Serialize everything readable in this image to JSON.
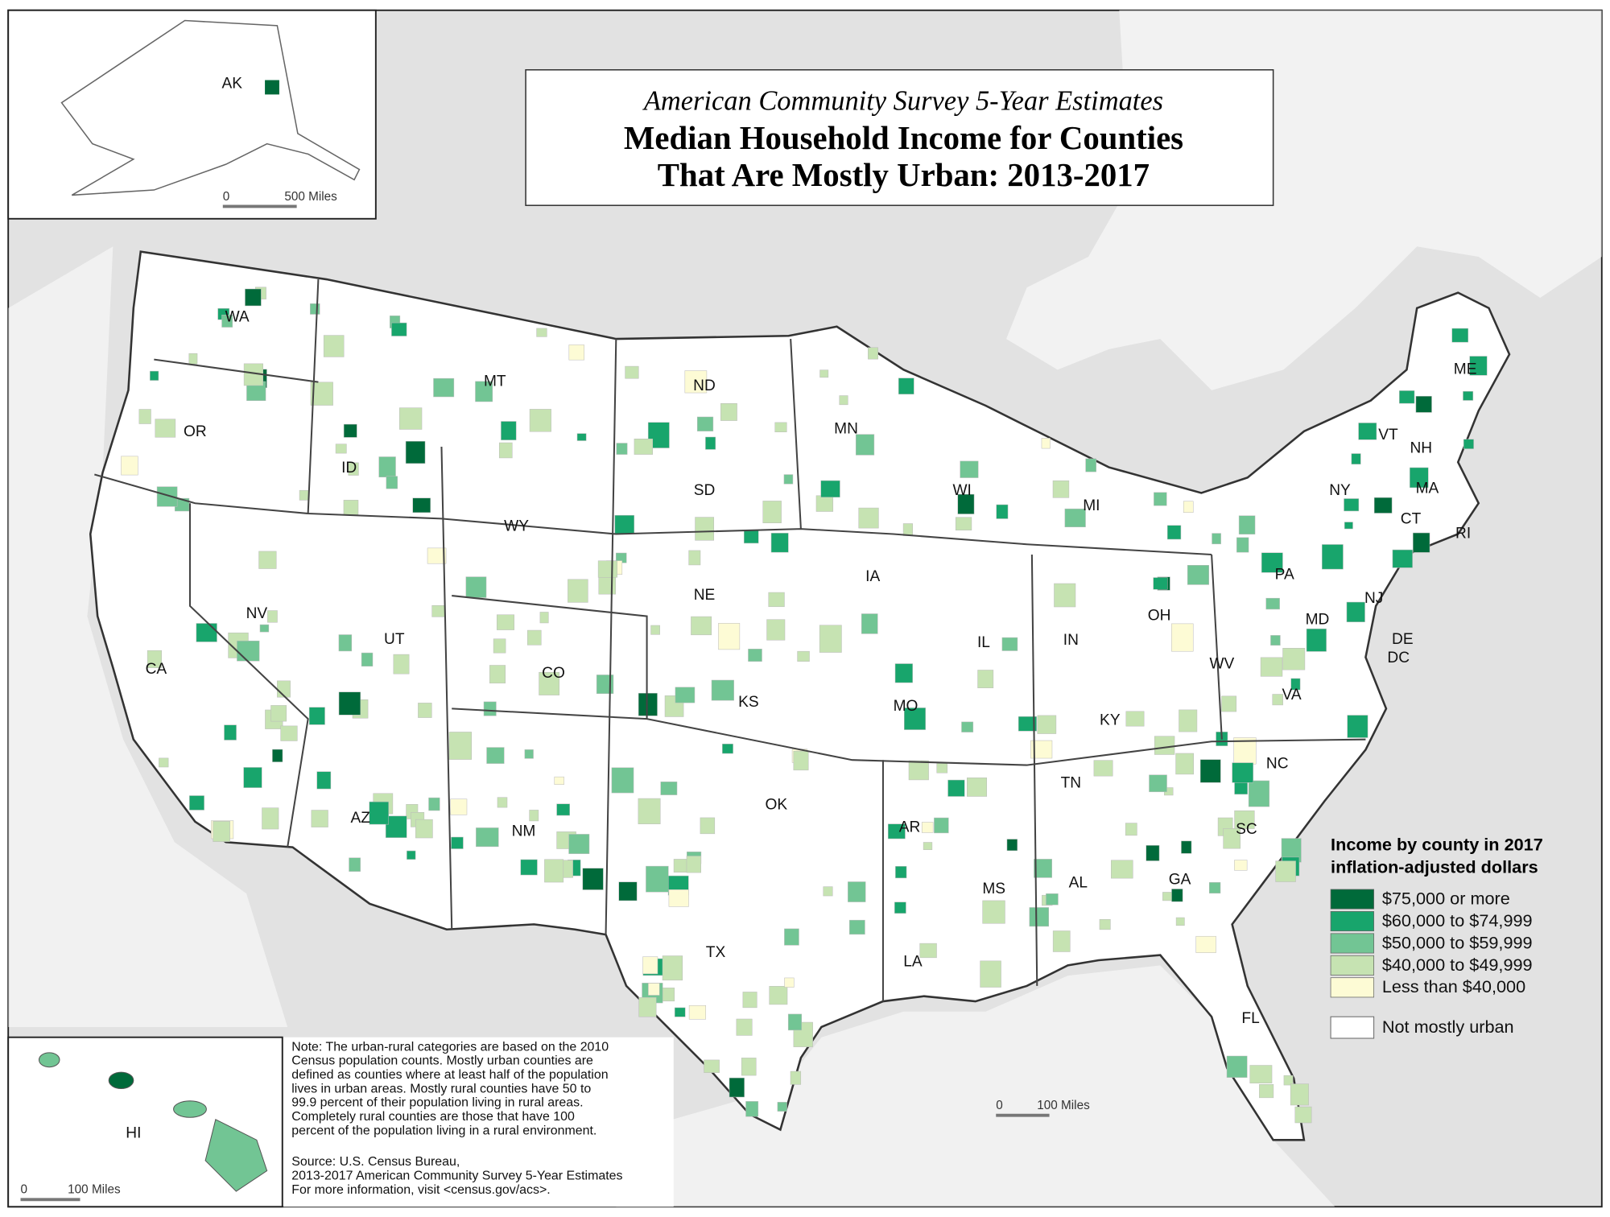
{
  "header": {
    "subtitle": "American Community Survey 5-Year Estimates",
    "title_lines": [
      "Median Household Income for Counties",
      "That Are Mostly Urban: 2013-2017"
    ]
  },
  "legend": {
    "title_lines": [
      "Income by county in 2017",
      "inflation-adjusted dollars"
    ],
    "items": [
      {
        "label": "$75,000 or more",
        "color": "#006a3a"
      },
      {
        "label": "$60,000 to $74,999",
        "color": "#18a56c"
      },
      {
        "label": "$50,000 to $59,999",
        "color": "#72c594"
      },
      {
        "label": "$40,000 to $49,999",
        "color": "#c6e3b2"
      },
      {
        "label": "Less than $40,000",
        "color": "#fdfbd5"
      }
    ],
    "other": {
      "label": "Not mostly urban",
      "color": "#ffffff"
    }
  },
  "states": [
    "AK",
    "WA",
    "OR",
    "CA",
    "NV",
    "ID",
    "MT",
    "WY",
    "UT",
    "AZ",
    "CO",
    "NM",
    "ND",
    "SD",
    "NE",
    "KS",
    "OK",
    "TX",
    "MN",
    "IA",
    "MO",
    "AR",
    "LA",
    "WI",
    "IL",
    "MS",
    "MI",
    "IN",
    "OH",
    "KY",
    "TN",
    "AL",
    "GA",
    "FL",
    "SC",
    "NC",
    "VA",
    "WV",
    "PA",
    "NY",
    "VT",
    "NH",
    "ME",
    "MA",
    "CT",
    "RI",
    "NJ",
    "DE",
    "MD",
    "DC",
    "HI"
  ],
  "scale_bars": {
    "alaska": [
      "0",
      "500 Miles"
    ],
    "mainland": [
      "0",
      "100 Miles"
    ],
    "hawaii": [
      "0",
      "100 Miles"
    ]
  },
  "note": [
    "Note: The urban-rural categories are based on the 2010",
    "Census population counts. Mostly urban counties are",
    "defined as counties where at least half of the population",
    "lives in urban areas. Mostly rural counties have 50 to",
    "99.9 percent of their population living in rural areas.",
    "Completely rural counties are those that have 100",
    "percent of the population living in a rural environment."
  ],
  "source": [
    "Source: U.S. Census Bureau,",
    "2013-2017 American Community Survey 5-Year Estimates",
    "For more information, visit <census.gov/acs>."
  ]
}
